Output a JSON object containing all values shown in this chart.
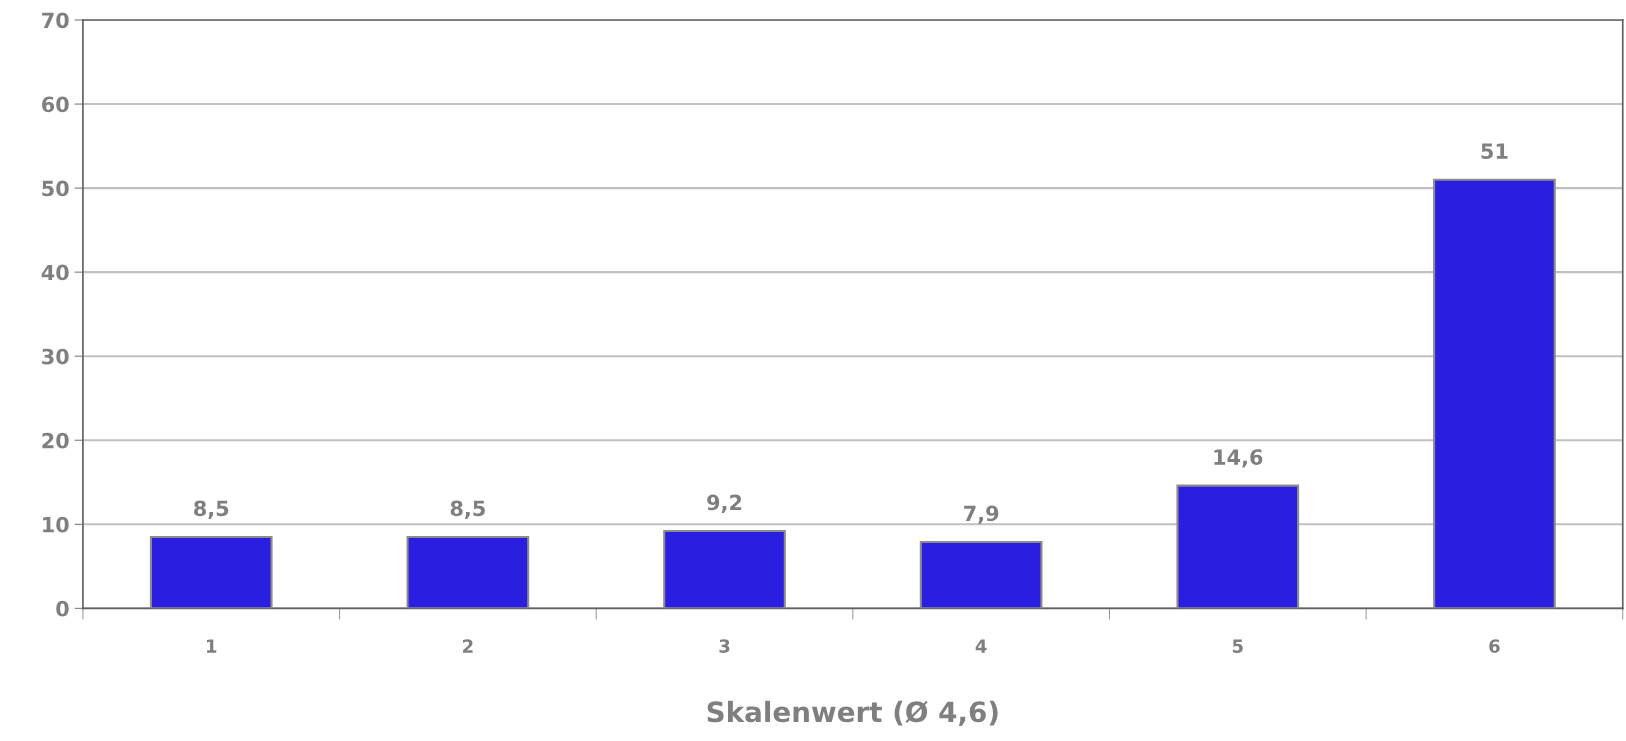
{
  "chart_data": {
    "type": "bar",
    "xlabel": "Skalenwert (Ø 4,6)",
    "categories": [
      "1",
      "2",
      "3",
      "4",
      "5",
      "6"
    ],
    "values": [
      8.5,
      8.5,
      9.2,
      7.9,
      14.6,
      51
    ],
    "value_labels": [
      "8,5",
      "8,5",
      "9,2",
      "7,9",
      "14,6",
      "51"
    ],
    "color": "#2a1fe0",
    "ylim": [
      0,
      70
    ],
    "yticks": [
      0,
      10,
      20,
      30,
      40,
      50,
      60,
      70
    ],
    "grid": "y"
  }
}
